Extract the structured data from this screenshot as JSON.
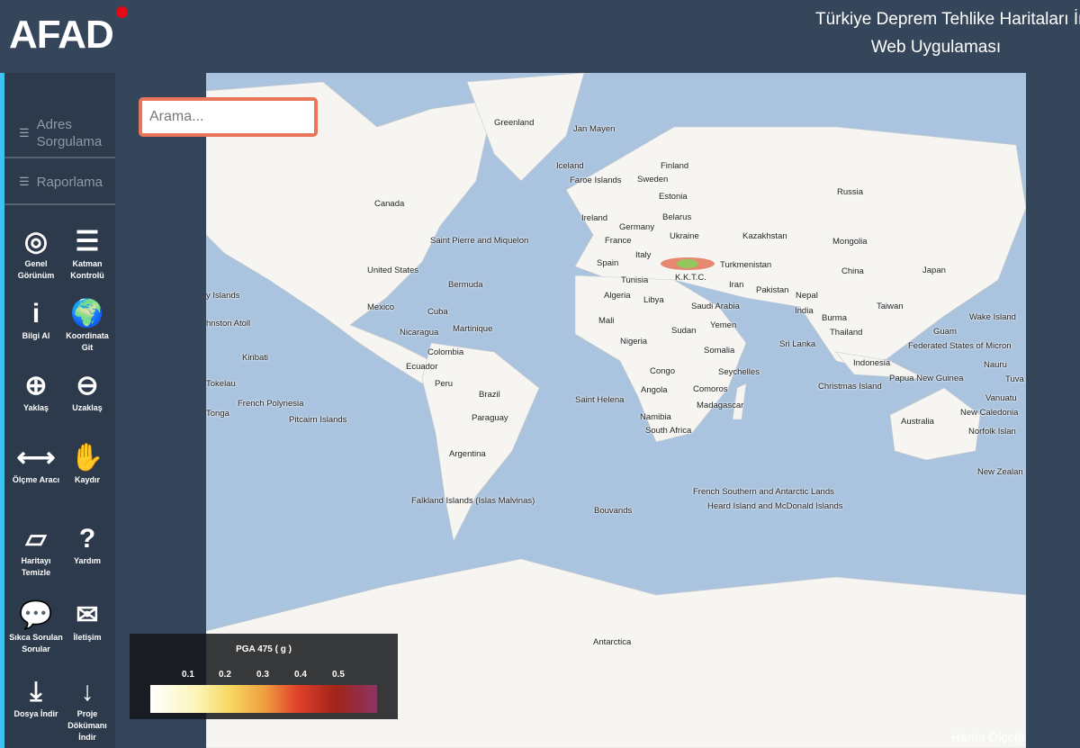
{
  "header": {
    "logo": "AFAD",
    "title_line1": "Türkiye Deprem Tehlike Haritaları İn",
    "title_line2": "Web Uygulaması"
  },
  "sidebar": {
    "menu": [
      {
        "label": "Adres Sorgulama",
        "icon": "list-icon"
      },
      {
        "label": "Raporlama",
        "icon": "list-icon"
      }
    ],
    "tools": [
      {
        "label": "Genel Görünüm",
        "icon": "crosshair-icon",
        "glyph": "◎"
      },
      {
        "label": "Katman Kontrolü",
        "icon": "layers-icon",
        "glyph": "☰"
      },
      {
        "label": "Bilgi Al",
        "icon": "info-icon",
        "glyph": "i"
      },
      {
        "label": "Koordinata Git",
        "icon": "globe-pin-icon",
        "glyph": "🌍"
      },
      {
        "label": "Yaklaş",
        "icon": "zoom-in-icon",
        "glyph": "⊕"
      },
      {
        "label": "Uzaklaş",
        "icon": "zoom-out-icon",
        "glyph": "⊖"
      },
      {
        "label": "Ölçme Aracı",
        "icon": "measure-icon",
        "glyph": "⟷"
      },
      {
        "label": "Kaydır",
        "icon": "hand-icon",
        "glyph": "✋"
      },
      {
        "label": "Haritayı Temizle",
        "icon": "eraser-icon",
        "glyph": "▱"
      },
      {
        "label": "Yardım",
        "icon": "help-icon",
        "glyph": "?"
      },
      {
        "label": "Sıkca Sorulan Sorular",
        "icon": "chat-icon",
        "glyph": "💬"
      },
      {
        "label": "İletişim",
        "icon": "mail-icon",
        "glyph": "✉"
      },
      {
        "label": "Dosya İndir",
        "icon": "download-icon",
        "glyph": "⤓"
      },
      {
        "label": "Proje Dökümanı İndir",
        "icon": "arrow-down-icon",
        "glyph": "↓"
      }
    ]
  },
  "search": {
    "placeholder": "Arama..."
  },
  "map": {
    "labels": [
      "Greenland",
      "Jan Mayen",
      "Iceland",
      "Faroe Islands",
      "Finland",
      "Sweden",
      "Estonia",
      "Russia",
      "Canada",
      "Ireland",
      "Belarus",
      "Germany",
      "Ukraine",
      "France",
      "Kazakhstan",
      "Mongolia",
      "Saint Pierre and Miquelon",
      "Spain",
      "Italy",
      "Turkmenistan",
      "China",
      "Japan",
      "United States",
      "Bermuda",
      "Tunisia",
      "K.K.T.C.",
      "Iran",
      "Algeria",
      "Libya",
      "Pakistan",
      "Nepal",
      "y Islands",
      "Mexico",
      "Cuba",
      "Saudi Arabia",
      "India",
      "Taiwan",
      "Wake Island",
      "hnston Atoll",
      "Martinique",
      "Mali",
      "Yemen",
      "Burma",
      "Guam",
      "Nicaragua",
      "Sudan",
      "Thailand",
      "Federated States of Micron",
      "Colombia",
      "Nigeria",
      "Somalia",
      "Sri Lanka",
      "Kiribati",
      "Ecuador",
      "Indonesia",
      "Nauru",
      "Congo",
      "Seychelles",
      "Tokelau",
      "Peru",
      "Brazil",
      "Angola",
      "Comoros",
      "Christmas Island",
      "Papua New Guinea",
      "Tuva",
      "French Polynesia",
      "Saint Helena",
      "Vanuatu",
      "Tonga",
      "Madagascar",
      "New Caledonia",
      "Pitcairn Islands",
      "Paraguay",
      "Namibia",
      "Australia",
      "South Africa",
      "Norfolk Islan",
      "Argentina",
      "New Zealan",
      "French Southern and Antarctic Lands",
      "Falkland Islands (Islas Malvinas)",
      "Heard Island and McDonald Islands",
      "Bouvands",
      "Antarctica"
    ],
    "scale_label": "Harita Ölçeği"
  },
  "legend": {
    "title": "PGA 475 ( g )",
    "ticks": [
      "0.1",
      "0.2",
      "0.3",
      "0.4",
      "0.5"
    ]
  },
  "colors": {
    "sidebar": "#2d3a4b",
    "accent": "#3dc3f1",
    "ocean": "#aac4df",
    "search_border": "#e9765a"
  }
}
